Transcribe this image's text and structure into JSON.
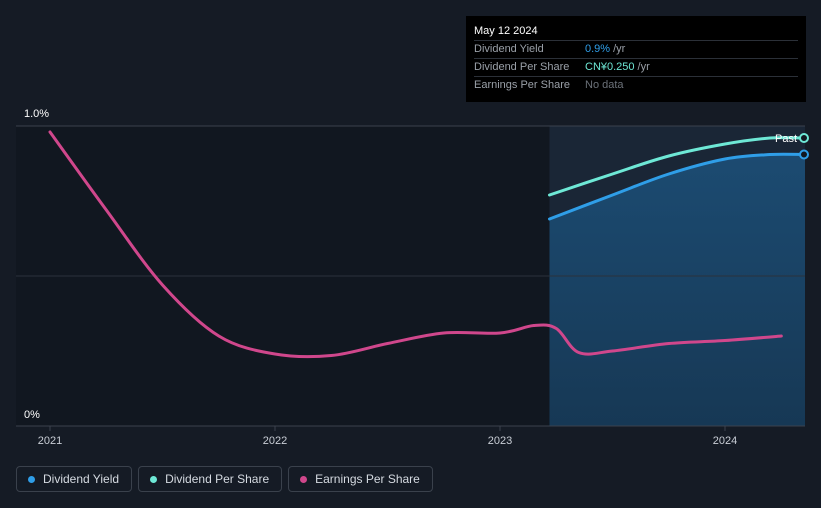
{
  "tooltip": {
    "date": "May 12 2024",
    "rows": [
      {
        "label": "Dividend Yield",
        "value": "0.9%",
        "unit": "/yr"
      },
      {
        "label": "Dividend Per Share",
        "value": "CN¥0.250",
        "unit": "/yr"
      },
      {
        "label": "Earnings Per Share",
        "value": "No data",
        "unit": ""
      }
    ]
  },
  "past_label": "Past",
  "legend": [
    {
      "label": "Dividend Yield",
      "color": "#2f9ee8"
    },
    {
      "label": "Dividend Per Share",
      "color": "#6ee8d6"
    },
    {
      "label": "Earnings Per Share",
      "color": "#d0478c"
    }
  ],
  "chart_data": {
    "type": "line",
    "y_tick_labels": [
      "1.0%",
      "0%"
    ],
    "x_tick_labels": [
      "2021",
      "2022",
      "2023",
      "2024"
    ],
    "x_range": [
      2021.0,
      2024.35
    ],
    "ylim": [
      0,
      1.0
    ],
    "past_region_start": 2023.22,
    "series": [
      {
        "name": "Dividend Yield",
        "color": "#2f9ee8",
        "x": [
          2023.22,
          2023.5,
          2023.75,
          2024.0,
          2024.2,
          2024.35
        ],
        "y": [
          0.69,
          0.77,
          0.84,
          0.89,
          0.905,
          0.905
        ]
      },
      {
        "name": "Dividend Per Share",
        "color": "#6ee8d6",
        "x": [
          2023.22,
          2023.5,
          2023.75,
          2024.0,
          2024.2,
          2024.35
        ],
        "y": [
          0.77,
          0.84,
          0.9,
          0.94,
          0.96,
          0.96
        ]
      },
      {
        "name": "Earnings Per Share",
        "color": "#d0478c",
        "x": [
          2021.0,
          2021.25,
          2021.5,
          2021.75,
          2022.0,
          2022.25,
          2022.5,
          2022.75,
          2023.0,
          2023.15,
          2023.25,
          2023.35,
          2023.5,
          2023.75,
          2024.0,
          2024.25
        ],
        "y": [
          0.98,
          0.72,
          0.47,
          0.3,
          0.24,
          0.235,
          0.275,
          0.31,
          0.31,
          0.335,
          0.325,
          0.245,
          0.25,
          0.275,
          0.285,
          0.3
        ]
      }
    ]
  }
}
